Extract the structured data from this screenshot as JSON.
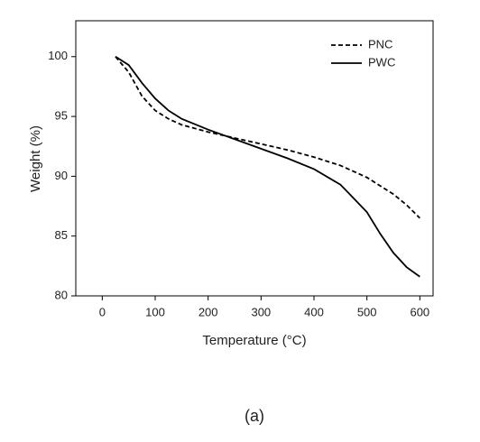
{
  "chart_data": {
    "type": "line",
    "x_label": "Temperature (°C)",
    "y_label": "Weight (%)",
    "caption": "(a)",
    "x": [
      25,
      50,
      75,
      100,
      125,
      150,
      200,
      250,
      300,
      350,
      400,
      450,
      500,
      525,
      550,
      575,
      600
    ],
    "series": [
      {
        "name": "PNC",
        "color": "#000000",
        "dash": "dashed",
        "values": [
          100,
          98.7,
          96.7,
          95.5,
          94.8,
          94.3,
          93.7,
          93.2,
          92.7,
          92.2,
          91.6,
          90.9,
          89.9,
          89.2,
          88.5,
          87.6,
          86.5
        ]
      },
      {
        "name": "PWC",
        "color": "#000000",
        "dash": "solid",
        "values": [
          100,
          99.3,
          97.8,
          96.5,
          95.5,
          94.8,
          93.9,
          93.1,
          92.3,
          91.5,
          90.6,
          89.3,
          87.0,
          85.2,
          83.6,
          82.4,
          81.6
        ]
      }
    ],
    "xlim": [
      -50,
      625
    ],
    "xticks": [
      0,
      100,
      200,
      300,
      400,
      500,
      600
    ],
    "ylim": [
      80,
      103
    ],
    "yticks": [
      80,
      85,
      90,
      95,
      100
    ],
    "legend": "top-right"
  }
}
